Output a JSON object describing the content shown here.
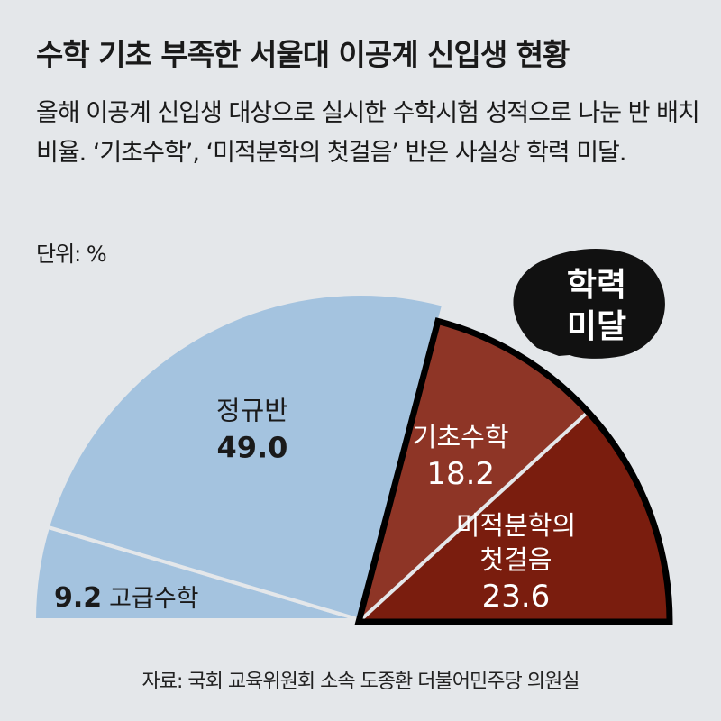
{
  "title": "수학 기초 부족한 서울대 이공계 신입생 현황",
  "subtitle": "올해 이공계 신입생 대상으로 실시한 수학시험 성적으로 나눈 반 배치 비율. ‘기초수학’, ‘미적분학의 첫걸음’ 반은 사실상 학력 미달.",
  "unit": "단위: %",
  "callout": [
    "학력",
    "미달"
  ],
  "source": "자료: 국회 교육위원회 소속 도종환 더불어민주당 의원실",
  "colors": {
    "regular": "#a4c3df",
    "advanced": "#a4c3df",
    "basic": "#8e3526",
    "calculus": "#7a1d0e",
    "background": "#e4e7ea"
  },
  "chart_data": {
    "type": "pie",
    "shape": "semicircle",
    "unit": "%",
    "slices": [
      {
        "label": "고급수학",
        "value": 9.2,
        "value_text": "9.2"
      },
      {
        "label": "정규반",
        "value": 49.0,
        "value_text": "49.0"
      },
      {
        "label": "기초수학",
        "value": 18.2,
        "value_text": "18.2"
      },
      {
        "label": "미적분학의 첫걸음",
        "label_lines": [
          "미적분학의",
          "첫걸음"
        ],
        "value": 23.6,
        "value_text": "23.6"
      }
    ],
    "highlight": {
      "label": "학력 미달",
      "slices": [
        "기초수학",
        "미적분학의 첫걸음"
      ]
    }
  }
}
